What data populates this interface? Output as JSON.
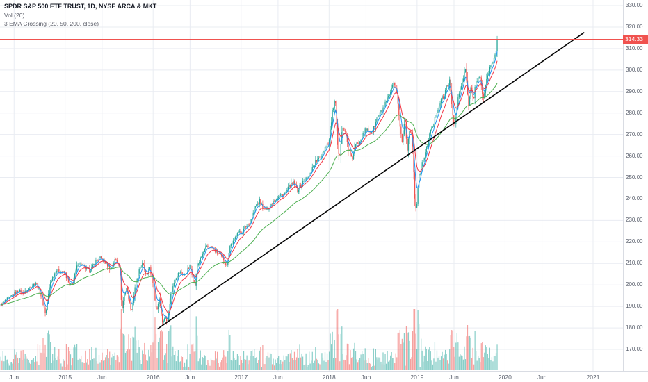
{
  "header": {
    "symbol_title": "SPDR S&P 500 ETF TRUST, 1D, NYSE ARCA & MKT",
    "indicators": [
      "Vol (20)",
      "3 EMA Crossing (20, 50, 200, close)"
    ]
  },
  "price_axis": {
    "tick_labels": [
      "330.00",
      "320.00",
      "310.00",
      "300.00",
      "290.00",
      "280.00",
      "270.00",
      "260.00",
      "250.00",
      "240.00",
      "230.00",
      "220.00",
      "210.00",
      "200.00",
      "190.00",
      "180.00",
      "170.00"
    ],
    "last_price_label": "314.33",
    "last_price_color": "#f0524f"
  },
  "time_axis": {
    "labels": [
      {
        "label": "Jun",
        "t": 2014.42
      },
      {
        "label": "2015",
        "t": 2015.0
      },
      {
        "label": "Jun",
        "t": 2015.42
      },
      {
        "label": "2016",
        "t": 2016.0
      },
      {
        "label": "Jun",
        "t": 2016.42
      },
      {
        "label": "2017",
        "t": 2017.0
      },
      {
        "label": "Jun",
        "t": 2017.42
      },
      {
        "label": "2018",
        "t": 2018.0
      },
      {
        "label": "Jun",
        "t": 2018.42
      },
      {
        "label": "2019",
        "t": 2019.0
      },
      {
        "label": "Jun",
        "t": 2019.42
      },
      {
        "label": "2020",
        "t": 2020.0
      },
      {
        "label": "Jun",
        "t": 2020.42
      },
      {
        "label": "2021",
        "t": 2021.0
      }
    ]
  },
  "chart_data": {
    "type": "candlestick",
    "title": "SPDR S&P 500 ETF TRUST, 1D, NYSE ARCA & MKT",
    "x_axis": {
      "start": 2014.26,
      "end": 2021.34,
      "unit": "year"
    },
    "y_axis": {
      "min": 170,
      "max": 330,
      "tick_step": 10
    },
    "last_price": 314.33,
    "grid_color": "#e9ecf2",
    "candle_colors": {
      "up": "#26a69a",
      "down": "#ef5350"
    },
    "volume": {
      "ma_period": 20,
      "up_color": "rgba(38,166,154,0.55)",
      "down_color": "rgba(239,83,80,0.55)"
    },
    "close_keypoints": [
      [
        2014.27,
        190.5
      ],
      [
        2014.33,
        193
      ],
      [
        2014.4,
        195
      ],
      [
        2014.47,
        197.5
      ],
      [
        2014.53,
        196
      ],
      [
        2014.6,
        199
      ],
      [
        2014.67,
        201
      ],
      [
        2014.72,
        196
      ],
      [
        2014.78,
        186.5
      ],
      [
        2014.83,
        201
      ],
      [
        2014.9,
        207
      ],
      [
        2014.95,
        206
      ],
      [
        2015.0,
        205.5
      ],
      [
        2015.05,
        199.5
      ],
      [
        2015.09,
        201
      ],
      [
        2015.15,
        211
      ],
      [
        2015.22,
        208
      ],
      [
        2015.28,
        206.5
      ],
      [
        2015.35,
        211
      ],
      [
        2015.4,
        212.5
      ],
      [
        2015.47,
        210
      ],
      [
        2015.52,
        207
      ],
      [
        2015.57,
        212
      ],
      [
        2015.62,
        209
      ],
      [
        2015.645,
        187.5
      ],
      [
        2015.67,
        195
      ],
      [
        2015.7,
        199
      ],
      [
        2015.73,
        192
      ],
      [
        2015.755,
        187.8
      ],
      [
        2015.8,
        200
      ],
      [
        2015.85,
        208
      ],
      [
        2015.88,
        210
      ],
      [
        2015.92,
        205
      ],
      [
        2015.96,
        208
      ],
      [
        2016.0,
        201
      ],
      [
        2016.04,
        187.5
      ],
      [
        2016.07,
        194
      ],
      [
        2016.11,
        182
      ],
      [
        2016.14,
        186
      ],
      [
        2016.16,
        181.5
      ],
      [
        2016.2,
        195
      ],
      [
        2016.25,
        203
      ],
      [
        2016.3,
        206
      ],
      [
        2016.36,
        204.5
      ],
      [
        2016.42,
        209
      ],
      [
        2016.45,
        204
      ],
      [
        2016.475,
        198.5
      ],
      [
        2016.5,
        209
      ],
      [
        2016.55,
        213
      ],
      [
        2016.6,
        217.5
      ],
      [
        2016.65,
        218
      ],
      [
        2016.7,
        216
      ],
      [
        2016.75,
        214.5
      ],
      [
        2016.8,
        212
      ],
      [
        2016.84,
        208.5
      ],
      [
        2016.87,
        218
      ],
      [
        2016.92,
        220.5
      ],
      [
        2016.96,
        225
      ],
      [
        2017.0,
        224
      ],
      [
        2017.05,
        227
      ],
      [
        2017.1,
        229
      ],
      [
        2017.16,
        236.5
      ],
      [
        2017.21,
        239
      ],
      [
        2017.26,
        235
      ],
      [
        2017.31,
        235.5
      ],
      [
        2017.36,
        239
      ],
      [
        2017.42,
        241
      ],
      [
        2017.5,
        242.5
      ],
      [
        2017.55,
        246
      ],
      [
        2017.6,
        247.5
      ],
      [
        2017.64,
        244
      ],
      [
        2017.68,
        246.5
      ],
      [
        2017.72,
        249
      ],
      [
        2017.76,
        250
      ],
      [
        2017.8,
        254
      ],
      [
        2017.85,
        257.5
      ],
      [
        2017.9,
        259
      ],
      [
        2017.95,
        264
      ],
      [
        2018.0,
        267
      ],
      [
        2018.04,
        281
      ],
      [
        2018.07,
        286.5
      ],
      [
        2018.1,
        263.5
      ],
      [
        2018.115,
        258
      ],
      [
        2018.15,
        274
      ],
      [
        2018.19,
        270
      ],
      [
        2018.22,
        263
      ],
      [
        2018.26,
        258
      ],
      [
        2018.3,
        265
      ],
      [
        2018.34,
        266
      ],
      [
        2018.38,
        271
      ],
      [
        2018.42,
        272
      ],
      [
        2018.46,
        271.5
      ],
      [
        2018.5,
        272
      ],
      [
        2018.55,
        278
      ],
      [
        2018.6,
        281
      ],
      [
        2018.65,
        285
      ],
      [
        2018.7,
        289.5
      ],
      [
        2018.73,
        293
      ],
      [
        2018.77,
        290.5
      ],
      [
        2018.8,
        276
      ],
      [
        2018.83,
        266
      ],
      [
        2018.86,
        277
      ],
      [
        2018.89,
        263.5
      ],
      [
        2018.92,
        274
      ],
      [
        2018.95,
        265
      ],
      [
        2018.975,
        240
      ],
      [
        2018.99,
        234.3
      ],
      [
        2019.02,
        250
      ],
      [
        2019.06,
        257
      ],
      [
        2019.1,
        262
      ],
      [
        2019.14,
        270
      ],
      [
        2019.18,
        274
      ],
      [
        2019.22,
        280
      ],
      [
        2019.27,
        286
      ],
      [
        2019.31,
        288
      ],
      [
        2019.34,
        293
      ],
      [
        2019.37,
        294.5
      ],
      [
        2019.4,
        281
      ],
      [
        2019.425,
        273.5
      ],
      [
        2019.47,
        288
      ],
      [
        2019.51,
        293.5
      ],
      [
        2019.55,
        300.5
      ],
      [
        2019.585,
        283
      ],
      [
        2019.61,
        292
      ],
      [
        2019.64,
        286
      ],
      [
        2019.66,
        292.5
      ],
      [
        2019.69,
        297.5
      ],
      [
        2019.72,
        296
      ],
      [
        2019.75,
        285
      ],
      [
        2019.78,
        294
      ],
      [
        2019.82,
        300
      ],
      [
        2019.86,
        304
      ],
      [
        2019.9,
        310
      ],
      [
        2019.92,
        314.33
      ]
    ],
    "overlays": {
      "emas": [
        {
          "name": "EMA 20",
          "period": 20,
          "color": "#2196f3"
        },
        {
          "name": "EMA 50",
          "period": 50,
          "color": "#f23645"
        },
        {
          "name": "EMA 200",
          "period": 200,
          "color": "#4caf50"
        }
      ],
      "trendline": {
        "from": [
          2016.05,
          179.5
        ],
        "to": [
          2020.9,
          317.5
        ],
        "color": "#000000",
        "width": 1.6
      },
      "price_line": {
        "value": 314.33,
        "color": "#f0524f"
      }
    }
  }
}
